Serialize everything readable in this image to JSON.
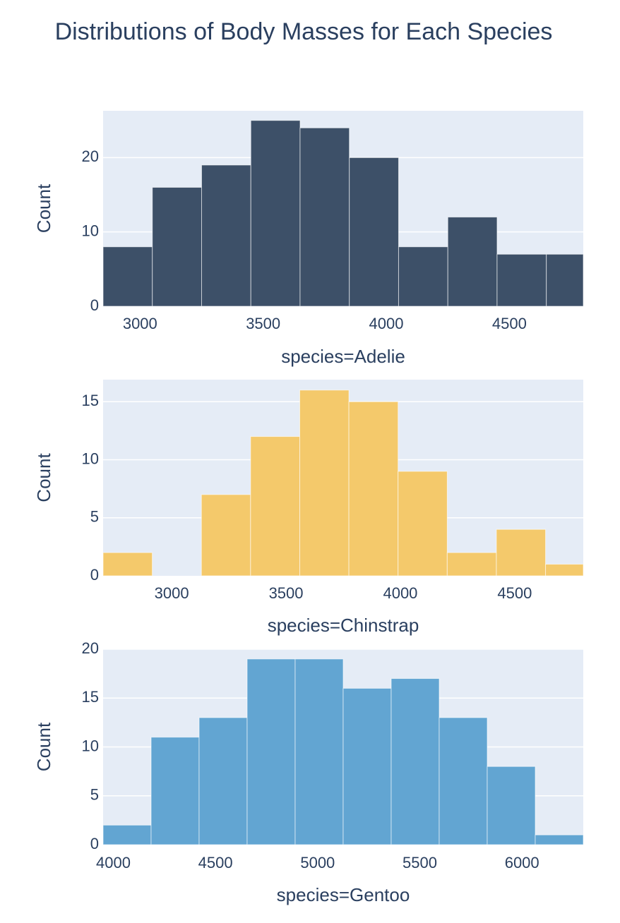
{
  "title": "Distributions of Body Masses for Each Species",
  "colors": {
    "plot_bg": "#e5ecf6",
    "grid": "#ffffff",
    "text": "#2a3f5f"
  },
  "chart_data": [
    {
      "type": "bar",
      "series_name": "Adelie",
      "xlabel": "species=Adelie",
      "ylabel": "Count",
      "color": "#3d5068",
      "xlim": [
        2850,
        4800
      ],
      "ylim": [
        0,
        26.3
      ],
      "xticks": [
        3000,
        3500,
        4000,
        4500
      ],
      "yticks": [
        0,
        10,
        20
      ],
      "bins": [
        {
          "x0": 2850,
          "x1": 3050,
          "count": 8
        },
        {
          "x0": 3050,
          "x1": 3250,
          "count": 16
        },
        {
          "x0": 3250,
          "x1": 3450,
          "count": 19
        },
        {
          "x0": 3450,
          "x1": 3650,
          "count": 25
        },
        {
          "x0": 3650,
          "x1": 3850,
          "count": 24
        },
        {
          "x0": 3850,
          "x1": 4050,
          "count": 20
        },
        {
          "x0": 4050,
          "x1": 4250,
          "count": 8
        },
        {
          "x0": 4250,
          "x1": 4450,
          "count": 12
        },
        {
          "x0": 4450,
          "x1": 4650,
          "count": 7
        },
        {
          "x0": 4650,
          "x1": 4850,
          "count": 7
        }
      ]
    },
    {
      "type": "bar",
      "series_name": "Chinstrap",
      "xlabel": "species=Chinstrap",
      "ylabel": "Count",
      "color": "#f4c96b",
      "xlim": [
        2700,
        4800
      ],
      "ylim": [
        0,
        16.9
      ],
      "xticks": [
        3000,
        3500,
        4000,
        4500
      ],
      "yticks": [
        0,
        5,
        10,
        15
      ],
      "bins": [
        {
          "x0": 2700,
          "x1": 2915,
          "count": 2
        },
        {
          "x0": 2915,
          "x1": 3130,
          "count": 0
        },
        {
          "x0": 3130,
          "x1": 3345,
          "count": 7
        },
        {
          "x0": 3345,
          "x1": 3560,
          "count": 12
        },
        {
          "x0": 3560,
          "x1": 3775,
          "count": 16
        },
        {
          "x0": 3775,
          "x1": 3990,
          "count": 15
        },
        {
          "x0": 3990,
          "x1": 4205,
          "count": 9
        },
        {
          "x0": 4205,
          "x1": 4420,
          "count": 2
        },
        {
          "x0": 4420,
          "x1": 4635,
          "count": 4
        },
        {
          "x0": 4635,
          "x1": 4850,
          "count": 1
        }
      ]
    },
    {
      "type": "bar",
      "series_name": "Gentoo",
      "xlabel": "species=Gentoo",
      "ylabel": "Count",
      "color": "#62a5d2",
      "xlim": [
        3950,
        6300
      ],
      "ylim": [
        0,
        20
      ],
      "xticks": [
        4000,
        4500,
        5000,
        5500,
        6000
      ],
      "yticks": [
        0,
        5,
        10,
        15,
        20
      ],
      "bins": [
        {
          "x0": 3950,
          "x1": 4185,
          "count": 2
        },
        {
          "x0": 4185,
          "x1": 4420,
          "count": 11
        },
        {
          "x0": 4420,
          "x1": 4655,
          "count": 13
        },
        {
          "x0": 4655,
          "x1": 4890,
          "count": 19
        },
        {
          "x0": 4890,
          "x1": 5125,
          "count": 19
        },
        {
          "x0": 5125,
          "x1": 5360,
          "count": 16
        },
        {
          "x0": 5360,
          "x1": 5595,
          "count": 17
        },
        {
          "x0": 5595,
          "x1": 5830,
          "count": 13
        },
        {
          "x0": 5830,
          "x1": 6065,
          "count": 8
        },
        {
          "x0": 6065,
          "x1": 6300,
          "count": 1
        }
      ]
    }
  ]
}
